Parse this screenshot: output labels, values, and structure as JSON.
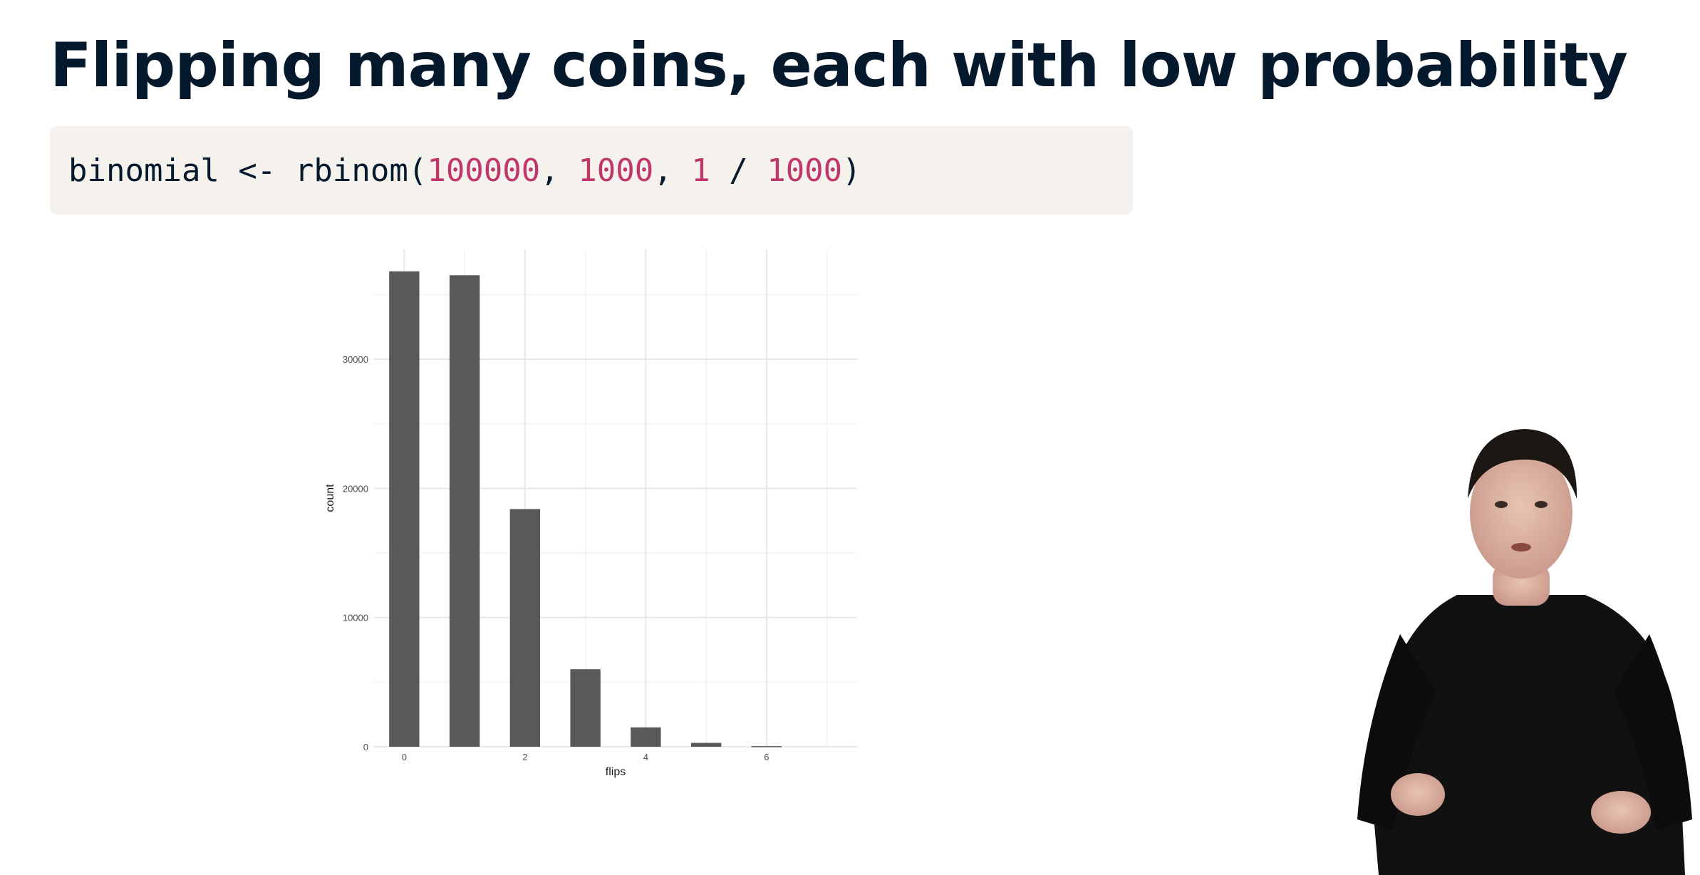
{
  "slide": {
    "title": "Flipping many coins, each with low probability"
  },
  "code": {
    "tokens": [
      {
        "text": "binomial <- rbinom(",
        "kind": "plain"
      },
      {
        "text": "100000",
        "kind": "num"
      },
      {
        "text": ", ",
        "kind": "plain"
      },
      {
        "text": "1000",
        "kind": "num"
      },
      {
        "text": ", ",
        "kind": "plain"
      },
      {
        "text": "1",
        "kind": "num"
      },
      {
        "text": " / ",
        "kind": "plain"
      },
      {
        "text": "1000",
        "kind": "num"
      },
      {
        "text": ")",
        "kind": "plain"
      }
    ]
  },
  "chart_data": {
    "type": "bar",
    "xlabel": "flips",
    "ylabel": "count",
    "x": [
      0,
      1,
      2,
      3,
      4,
      5,
      6
    ],
    "values": [
      36800,
      36500,
      18400,
      6000,
      1500,
      300,
      50
    ],
    "xticks": [
      "0",
      "2",
      "4",
      "6"
    ],
    "yticks": [
      "0",
      "10000",
      "20000",
      "30000"
    ],
    "xlim": [
      -0.5,
      7.5
    ],
    "ylim": [
      0,
      38500
    ],
    "grid": true,
    "bar_color": "#595959"
  },
  "colors": {
    "title": "#05192d",
    "code_bg": "#f5f1ec",
    "code_number": "#c0366b"
  }
}
